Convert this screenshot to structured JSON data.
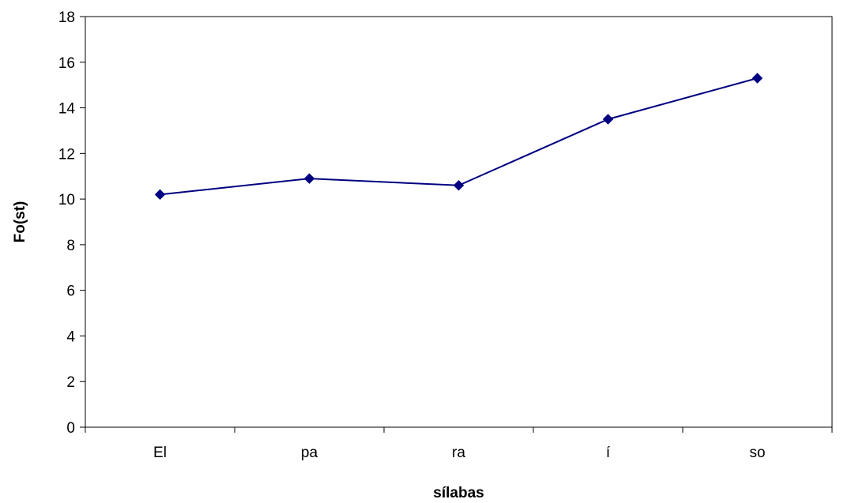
{
  "chart_data": {
    "type": "line",
    "categories": [
      "El",
      "pa",
      "ra",
      "í",
      "so"
    ],
    "series": [
      {
        "values": [
          10.2,
          10.9,
          10.6,
          13.5,
          15.3
        ],
        "color": "#000080",
        "marker": "diamond"
      }
    ],
    "xlabel": "sílabas",
    "ylabel": "Fo(st)",
    "ylim": [
      0,
      18
    ],
    "ytick_step": 2,
    "yticks": [
      "0",
      "2",
      "4",
      "6",
      "8",
      "10",
      "12",
      "14",
      "16",
      "18"
    ],
    "grid": false,
    "legend": "none",
    "plot_border": "box"
  }
}
